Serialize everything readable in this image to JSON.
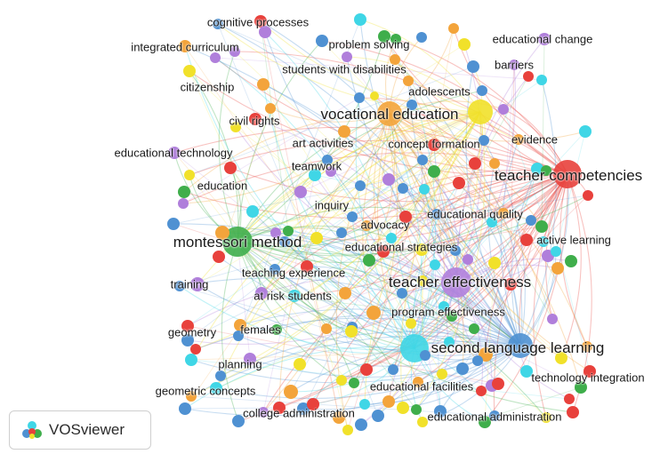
{
  "app": {
    "name": "VOSviewer"
  },
  "cluster_colors": {
    "red": "#e8413c",
    "green": "#3fae4b",
    "blue": "#4f91d2",
    "yellow": "#f1e12a",
    "purple": "#b07fdb",
    "cyan": "#3fd6e6",
    "orange": "#f3a43b"
  },
  "labels": [
    {
      "text": "cognitive processes"
    },
    {
      "text": "integrated curriculum"
    },
    {
      "text": "problem solving"
    },
    {
      "text": "educational change"
    },
    {
      "text": "students with disabilities"
    },
    {
      "text": "barriers"
    },
    {
      "text": "citizenship"
    },
    {
      "text": "adolescents"
    },
    {
      "text": "vocational education"
    },
    {
      "text": "civil rights"
    },
    {
      "text": "art activities"
    },
    {
      "text": "concept formation"
    },
    {
      "text": "evidence"
    },
    {
      "text": "educational technology"
    },
    {
      "text": "teamwork"
    },
    {
      "text": "teacher competencies"
    },
    {
      "text": "education"
    },
    {
      "text": "inquiry"
    },
    {
      "text": "educational quality"
    },
    {
      "text": "advocacy"
    },
    {
      "text": "montessori method"
    },
    {
      "text": "educational strategies"
    },
    {
      "text": "active learning"
    },
    {
      "text": "teaching experience"
    },
    {
      "text": "training"
    },
    {
      "text": "teacher effectiveness"
    },
    {
      "text": "at risk students"
    },
    {
      "text": "program effectiveness"
    },
    {
      "text": "geometry"
    },
    {
      "text": "females"
    },
    {
      "text": "second language learning"
    },
    {
      "text": "planning"
    },
    {
      "text": "technology integration"
    },
    {
      "text": "geometric concepts"
    },
    {
      "text": "educational facilities"
    },
    {
      "text": "college administration"
    },
    {
      "text": "educational administration"
    }
  ]
}
